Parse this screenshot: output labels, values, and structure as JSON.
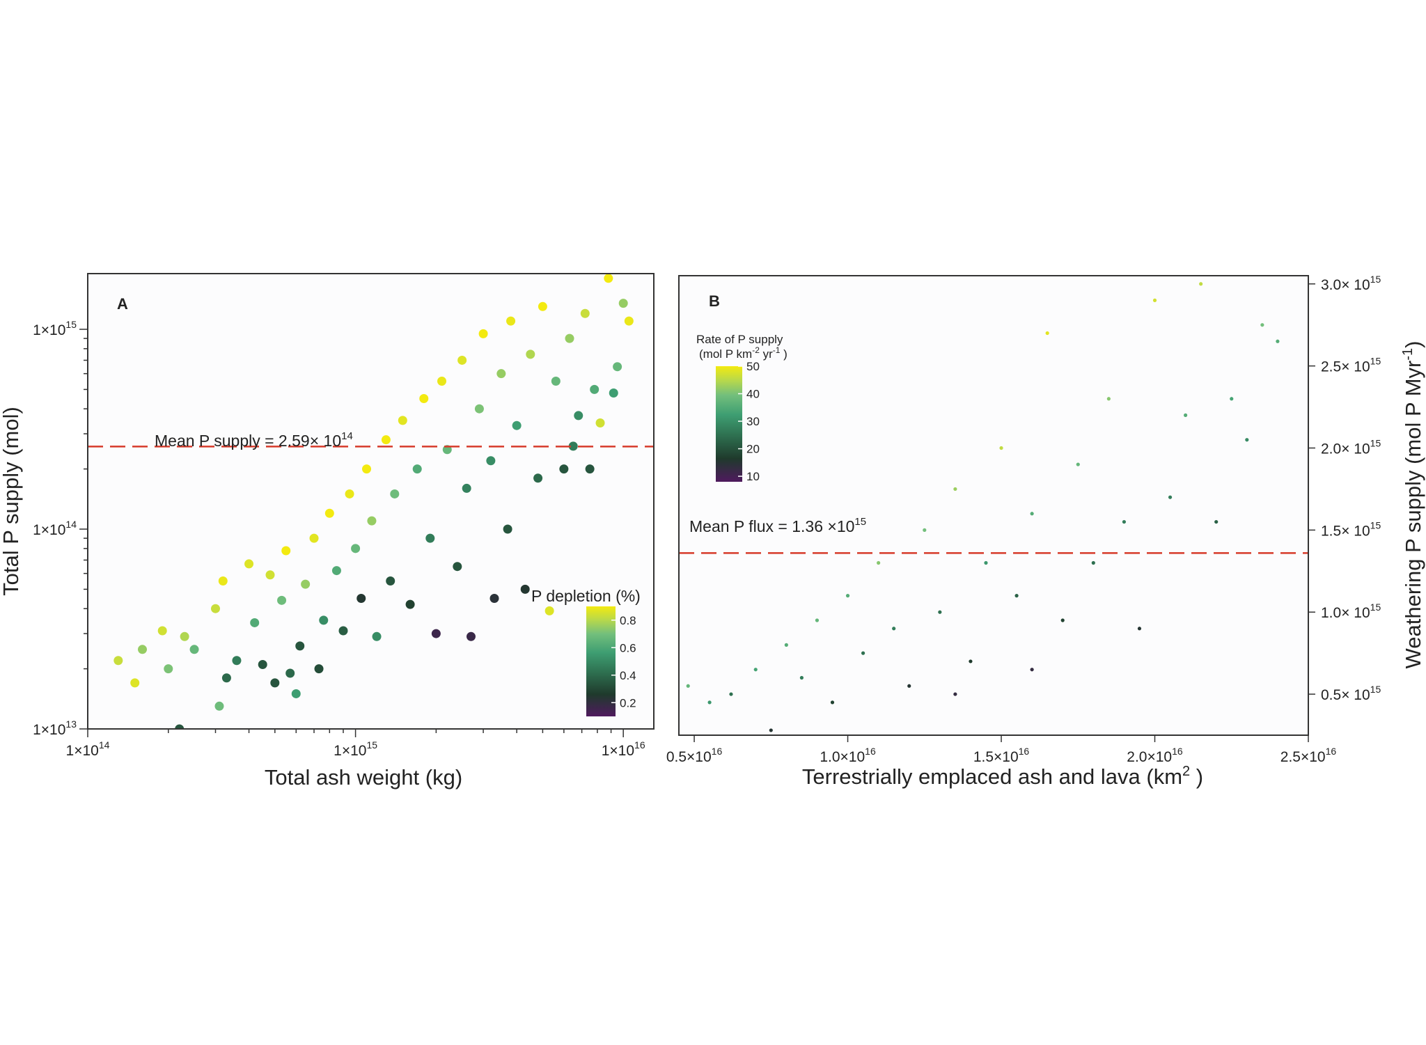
{
  "colors": {
    "mean_line": "#d63a2a",
    "frame": "#333333",
    "plot_bg": "#fcfcfd",
    "viridis": [
      "#4f1a5e",
      "#1f3a2c",
      "#2e7050",
      "#3e9e72",
      "#73bf7c",
      "#b9d94a",
      "#f3ea10"
    ]
  },
  "chart_data": [
    {
      "type": "scatter",
      "panel_label": "A",
      "xlabel": "Total ash weight (kg)",
      "ylabel": "Total P supply (mol)",
      "x_scale": "log",
      "y_scale": "log",
      "xlim": [
        100000000000000.0,
        1.3e+16
      ],
      "ylim": [
        10000000000000.0,
        1900000000000000.0
      ],
      "x_ticks": [
        {
          "value": 100000000000000.0,
          "label": "1×10",
          "exp": "14"
        },
        {
          "value": 1000000000000000.0,
          "label": "1×10",
          "exp": "15"
        },
        {
          "value": 1e+16,
          "label": "1×10",
          "exp": "16"
        }
      ],
      "y_ticks": [
        {
          "value": 10000000000000.0,
          "label": "1×10",
          "exp": "13"
        },
        {
          "value": 100000000000000.0,
          "label": "1×10",
          "exp": "14"
        },
        {
          "value": 1000000000000000.0,
          "label": "1×10",
          "exp": "15"
        }
      ],
      "mean_line": {
        "value": 259000000000000.0,
        "label": "Mean P supply = 2.59× 10",
        "exp": "14"
      },
      "colorbar": {
        "title": "P depletion (%)",
        "ticks": [
          "0.8",
          "0.6",
          "0.4",
          "0.2"
        ],
        "tick_values": [
          0.8,
          0.6,
          0.4,
          0.2
        ],
        "range": [
          0.1,
          0.9
        ],
        "position": "bottom-right"
      },
      "points": [
        {
          "x": 130000000000000.0,
          "y": 22000000000000.0,
          "c": 0.8
        },
        {
          "x": 150000000000000.0,
          "y": 17000000000000.0,
          "c": 0.85
        },
        {
          "x": 160000000000000.0,
          "y": 25000000000000.0,
          "c": 0.7
        },
        {
          "x": 190000000000000.0,
          "y": 31000000000000.0,
          "c": 0.82
        },
        {
          "x": 200000000000000.0,
          "y": 20000000000000.0,
          "c": 0.65
        },
        {
          "x": 220000000000000.0,
          "y": 10000000000000.0,
          "c": 0.3
        },
        {
          "x": 230000000000000.0,
          "y": 29000000000000.0,
          "c": 0.75
        },
        {
          "x": 250000000000000.0,
          "y": 25000000000000.0,
          "c": 0.6
        },
        {
          "x": 300000000000000.0,
          "y": 40000000000000.0,
          "c": 0.8
        },
        {
          "x": 310000000000000.0,
          "y": 13000000000000.0,
          "c": 0.62
        },
        {
          "x": 320000000000000.0,
          "y": 55000000000000.0,
          "c": 0.88
        },
        {
          "x": 330000000000000.0,
          "y": 18000000000000.0,
          "c": 0.35
        },
        {
          "x": 360000000000000.0,
          "y": 22000000000000.0,
          "c": 0.4
        },
        {
          "x": 400000000000000.0,
          "y": 67000000000000.0,
          "c": 0.85
        },
        {
          "x": 420000000000000.0,
          "y": 34000000000000.0,
          "c": 0.55
        },
        {
          "x": 450000000000000.0,
          "y": 21000000000000.0,
          "c": 0.3
        },
        {
          "x": 480000000000000.0,
          "y": 59000000000000.0,
          "c": 0.82
        },
        {
          "x": 500000000000000.0,
          "y": 17000000000000.0,
          "c": 0.3
        },
        {
          "x": 530000000000000.0,
          "y": 44000000000000.0,
          "c": 0.62
        },
        {
          "x": 550000000000000.0,
          "y": 78000000000000.0,
          "c": 0.9
        },
        {
          "x": 570000000000000.0,
          "y": 19000000000000.0,
          "c": 0.35
        },
        {
          "x": 600000000000000.0,
          "y": 15000000000000.0,
          "c": 0.5
        },
        {
          "x": 620000000000000.0,
          "y": 26000000000000.0,
          "c": 0.3
        },
        {
          "x": 650000000000000.0,
          "y": 53000000000000.0,
          "c": 0.7
        },
        {
          "x": 700000000000000.0,
          "y": 90000000000000.0,
          "c": 0.86
        },
        {
          "x": 730000000000000.0,
          "y": 20000000000000.0,
          "c": 0.28
        },
        {
          "x": 760000000000000.0,
          "y": 35000000000000.0,
          "c": 0.45
        },
        {
          "x": 800000000000000.0,
          "y": 120000000000000.0,
          "c": 0.9
        },
        {
          "x": 850000000000000.0,
          "y": 62000000000000.0,
          "c": 0.55
        },
        {
          "x": 900000000000000.0,
          "y": 31000000000000.0,
          "c": 0.32
        },
        {
          "x": 950000000000000.0,
          "y": 150000000000000.0,
          "c": 0.88
        },
        {
          "x": 1000000000000000.0,
          "y": 80000000000000.0,
          "c": 0.6
        },
        {
          "x": 1050000000000000.0,
          "y": 45000000000000.0,
          "c": 0.22
        },
        {
          "x": 1100000000000000.0,
          "y": 200000000000000.0,
          "c": 0.92
        },
        {
          "x": 1150000000000000.0,
          "y": 110000000000000.0,
          "c": 0.7
        },
        {
          "x": 1200000000000000.0,
          "y": 29000000000000.0,
          "c": 0.45
        },
        {
          "x": 1300000000000000.0,
          "y": 280000000000000.0,
          "c": 0.9
        },
        {
          "x": 1350000000000000.0,
          "y": 55000000000000.0,
          "c": 0.3
        },
        {
          "x": 1400000000000000.0,
          "y": 150000000000000.0,
          "c": 0.62
        },
        {
          "x": 1500000000000000.0,
          "y": 350000000000000.0,
          "c": 0.86
        },
        {
          "x": 1600000000000000.0,
          "y": 42000000000000.0,
          "c": 0.25
        },
        {
          "x": 1700000000000000.0,
          "y": 200000000000000.0,
          "c": 0.55
        },
        {
          "x": 1800000000000000.0,
          "y": 450000000000000.0,
          "c": 0.9
        },
        {
          "x": 1900000000000000.0,
          "y": 90000000000000.0,
          "c": 0.4
        },
        {
          "x": 2000000000000000.0,
          "y": 30000000000000.0,
          "c": 0.15
        },
        {
          "x": 2100000000000000.0,
          "y": 550000000000000.0,
          "c": 0.88
        },
        {
          "x": 2200000000000000.0,
          "y": 250000000000000.0,
          "c": 0.6
        },
        {
          "x": 2400000000000000.0,
          "y": 65000000000000.0,
          "c": 0.3
        },
        {
          "x": 2500000000000000.0,
          "y": 700000000000000.0,
          "c": 0.85
        },
        {
          "x": 2600000000000000.0,
          "y": 160000000000000.0,
          "c": 0.42
        },
        {
          "x": 2700000000000000.0,
          "y": 29000000000000.0,
          "c": 0.16
        },
        {
          "x": 2900000000000000.0,
          "y": 400000000000000.0,
          "c": 0.65
        },
        {
          "x": 3000000000000000.0,
          "y": 950000000000000.0,
          "c": 0.9
        },
        {
          "x": 3200000000000000.0,
          "y": 220000000000000.0,
          "c": 0.45
        },
        {
          "x": 3300000000000000.0,
          "y": 45000000000000.0,
          "c": 0.2
        },
        {
          "x": 3500000000000000.0,
          "y": 600000000000000.0,
          "c": 0.7
        },
        {
          "x": 3700000000000000.0,
          "y": 100000000000000.0,
          "c": 0.3
        },
        {
          "x": 3800000000000000.0,
          "y": 1100000000000000.0,
          "c": 0.88
        },
        {
          "x": 4000000000000000.0,
          "y": 330000000000000.0,
          "c": 0.5
        },
        {
          "x": 4300000000000000.0,
          "y": 50000000000000.0,
          "c": 0.22
        },
        {
          "x": 4500000000000000.0,
          "y": 750000000000000.0,
          "c": 0.75
        },
        {
          "x": 4800000000000000.0,
          "y": 180000000000000.0,
          "c": 0.35
        },
        {
          "x": 5000000000000000.0,
          "y": 1300000000000000.0,
          "c": 0.92
        },
        {
          "x": 5300000000000000.0,
          "y": 39000000000000.0,
          "c": 0.85
        },
        {
          "x": 5600000000000000.0,
          "y": 550000000000000.0,
          "c": 0.6
        },
        {
          "x": 6000000000000000.0,
          "y": 200000000000000.0,
          "c": 0.3
        },
        {
          "x": 6300000000000000.0,
          "y": 900000000000000.0,
          "c": 0.7
        },
        {
          "x": 6800000000000000.0,
          "y": 370000000000000.0,
          "c": 0.45
        },
        {
          "x": 7200000000000000.0,
          "y": 1200000000000000.0,
          "c": 0.8
        },
        {
          "x": 7800000000000000.0,
          "y": 500000000000000.0,
          "c": 0.55
        },
        {
          "x": 8200000000000000.0,
          "y": 340000000000000.0,
          "c": 0.82
        },
        {
          "x": 8800000000000000.0,
          "y": 1800000000000000.0,
          "c": 0.9
        },
        {
          "x": 9500000000000000.0,
          "y": 650000000000000.0,
          "c": 0.6
        },
        {
          "x": 1e+16,
          "y": 1350000000000000.0,
          "c": 0.7
        },
        {
          "x": 1.05e+16,
          "y": 1100000000000000.0,
          "c": 0.88
        },
        {
          "x": 9200000000000000.0,
          "y": 480000000000000.0,
          "c": 0.5
        },
        {
          "x": 6500000000000000.0,
          "y": 260000000000000.0,
          "c": 0.4
        },
        {
          "x": 7500000000000000.0,
          "y": 200000000000000.0,
          "c": 0.3
        }
      ]
    },
    {
      "type": "scatter",
      "panel_label": "B",
      "xlabel": "Terrestrially emplaced ash and lava (km",
      "xlabel_exp": "2",
      "xlabel_end": " )",
      "ylabel": "Weathering P supply (mol P Myr",
      "ylabel_exp": "-1",
      "ylabel_end": ")",
      "x_scale": "linear",
      "y_scale": "linear",
      "xlim": [
        4500000000000000.0,
        2.5e+16
      ],
      "ylim": [
        250000000000000.0,
        3050000000000000.0
      ],
      "x_ticks": [
        {
          "value": 5000000000000000.0,
          "label": "0.5×10",
          "exp": "16"
        },
        {
          "value": 1e+16,
          "label": "1.0×10",
          "exp": "16"
        },
        {
          "value": 1.5e+16,
          "label": "1.5×10",
          "exp": "16"
        },
        {
          "value": 2e+16,
          "label": "2.0×10",
          "exp": "16"
        },
        {
          "value": 2.5e+16,
          "label": "2.5×10",
          "exp": "16"
        }
      ],
      "y_ticks": [
        {
          "value": 500000000000000.0,
          "label": "0.5× 10",
          "exp": "15"
        },
        {
          "value": 1000000000000000.0,
          "label": "1.0× 10",
          "exp": "15"
        },
        {
          "value": 1500000000000000.0,
          "label": "1.5× 10",
          "exp": "15"
        },
        {
          "value": 2000000000000000.0,
          "label": "2.0× 10",
          "exp": "15"
        },
        {
          "value": 2500000000000000.0,
          "label": "2.5× 10",
          "exp": "15"
        },
        {
          "value": 3000000000000000.0,
          "label": "3.0× 10",
          "exp": "15"
        }
      ],
      "mean_line": {
        "value": 1360000000000000.0,
        "label": "Mean P flux = 1.36 ×10",
        "exp": "15"
      },
      "colorbar": {
        "title_line1": "Rate of P supply",
        "title_line2": "(mol P km",
        "title_line2_exp1": "-2",
        "title_line2_mid": " yr",
        "title_line2_exp2": "-1",
        "title_line2_end": " )",
        "ticks": [
          "50",
          "40",
          "30",
          "20",
          "10"
        ],
        "tick_values": [
          50,
          40,
          30,
          20,
          10
        ],
        "range": [
          8,
          50
        ],
        "position": "top-left"
      },
      "points": [
        {
          "x": 4800000000000000.0,
          "y": 550000000000000.0,
          "c": 34
        },
        {
          "x": 5500000000000000.0,
          "y": 450000000000000.0,
          "c": 28
        },
        {
          "x": 6200000000000000.0,
          "y": 500000000000000.0,
          "c": 22
        },
        {
          "x": 7000000000000000.0,
          "y": 650000000000000.0,
          "c": 30
        },
        {
          "x": 7500000000000000.0,
          "y": 280000000000000.0,
          "c": 14
        },
        {
          "x": 8000000000000000.0,
          "y": 800000000000000.0,
          "c": 32
        },
        {
          "x": 8500000000000000.0,
          "y": 600000000000000.0,
          "c": 24
        },
        {
          "x": 9000000000000000.0,
          "y": 950000000000000.0,
          "c": 34
        },
        {
          "x": 9500000000000000.0,
          "y": 450000000000000.0,
          "c": 16
        },
        {
          "x": 1e+16,
          "y": 1100000000000000.0,
          "c": 32
        },
        {
          "x": 1.05e+16,
          "y": 750000000000000.0,
          "c": 22
        },
        {
          "x": 1.1e+16,
          "y": 1300000000000000.0,
          "c": 38
        },
        {
          "x": 1.15e+16,
          "y": 900000000000000.0,
          "c": 24
        },
        {
          "x": 1.2e+16,
          "y": 550000000000000.0,
          "c": 14
        },
        {
          "x": 1.25e+16,
          "y": 1500000000000000.0,
          "c": 36
        },
        {
          "x": 1.3e+16,
          "y": 1000000000000000.0,
          "c": 22
        },
        {
          "x": 1.35e+16,
          "y": 1750000000000000.0,
          "c": 40
        },
        {
          "x": 1.4e+16,
          "y": 700000000000000.0,
          "c": 15
        },
        {
          "x": 1.45e+16,
          "y": 1300000000000000.0,
          "c": 28
        },
        {
          "x": 1.5e+16,
          "y": 2000000000000000.0,
          "c": 44
        },
        {
          "x": 1.55e+16,
          "y": 1100000000000000.0,
          "c": 20
        },
        {
          "x": 1.6e+16,
          "y": 1600000000000000.0,
          "c": 32
        },
        {
          "x": 1.65e+16,
          "y": 2700000000000000.0,
          "c": 48
        },
        {
          "x": 1.7e+16,
          "y": 950000000000000.0,
          "c": 16
        },
        {
          "x": 1.75e+16,
          "y": 1900000000000000.0,
          "c": 34
        },
        {
          "x": 1.8e+16,
          "y": 1300000000000000.0,
          "c": 22
        },
        {
          "x": 1.85e+16,
          "y": 2300000000000000.0,
          "c": 38
        },
        {
          "x": 1.9e+16,
          "y": 1550000000000000.0,
          "c": 24
        },
        {
          "x": 2e+16,
          "y": 2900000000000000.0,
          "c": 46
        },
        {
          "x": 2.05e+16,
          "y": 1700000000000000.0,
          "c": 24
        },
        {
          "x": 2.1e+16,
          "y": 2200000000000000.0,
          "c": 32
        },
        {
          "x": 2.15e+16,
          "y": 3000000000000000.0,
          "c": 44
        },
        {
          "x": 2.2e+16,
          "y": 1550000000000000.0,
          "c": 20
        },
        {
          "x": 2.25e+16,
          "y": 2300000000000000.0,
          "c": 30
        },
        {
          "x": 2.3e+16,
          "y": 2050000000000000.0,
          "c": 26
        },
        {
          "x": 2.35e+16,
          "y": 2750000000000000.0,
          "c": 36
        },
        {
          "x": 2.4e+16,
          "y": 2650000000000000.0,
          "c": 32
        },
        {
          "x": 1.35e+16,
          "y": 500000000000000.0,
          "c": 12
        },
        {
          "x": 1.6e+16,
          "y": 650000000000000.0,
          "c": 12
        },
        {
          "x": 1.95e+16,
          "y": 900000000000000.0,
          "c": 14
        }
      ]
    }
  ]
}
